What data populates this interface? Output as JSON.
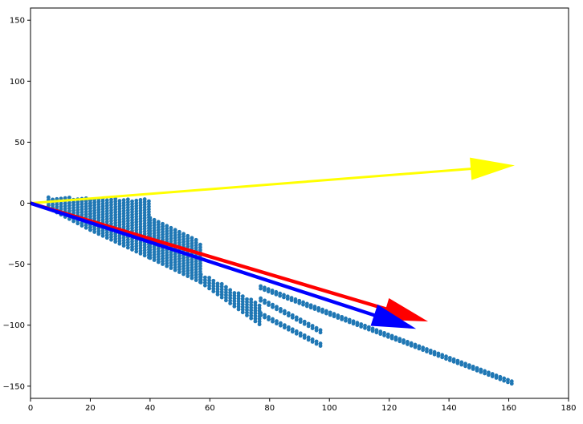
{
  "chart_data": {
    "type": "scatter",
    "title": "",
    "xlabel": "",
    "ylabel": "",
    "xlim": [
      0,
      180
    ],
    "ylim": [
      -160,
      160
    ],
    "grid": false,
    "x_ticks": [
      0,
      20,
      40,
      60,
      80,
      100,
      120,
      140,
      160,
      180
    ],
    "y_ticks": [
      -150,
      -100,
      -50,
      0,
      50,
      100,
      150
    ],
    "x_tick_labels": [
      "0",
      "20",
      "40",
      "60",
      "80",
      "100",
      "120",
      "140",
      "160",
      "180"
    ],
    "y_tick_labels": [
      "−150",
      "−100",
      "−50",
      "0",
      "50",
      "100",
      "150"
    ],
    "scatter": {
      "color": "#1f77b4",
      "description_cloud": [
        {
          "x_range": [
            6,
            20
          ],
          "y_top": 5,
          "y_bottom_start": -4,
          "y_bottom_end": -22
        },
        {
          "x_range": [
            20,
            40
          ],
          "y_top": 4,
          "y_bottom_start": -22,
          "y_bottom_end": -45
        },
        {
          "x_range": [
            40,
            57
          ],
          "y_top": -10,
          "y_bottom_start": -45,
          "y_bottom_end": -65
        },
        {
          "x_range": [
            57,
            77
          ],
          "y_top": -35,
          "y_bottom_start": -65,
          "y_bottom_end": -100
        }
      ],
      "tails": [
        {
          "x_start": 77,
          "y_start": -68,
          "x_end": 161,
          "y_end": -146
        },
        {
          "x_start": 77,
          "y_start": -78,
          "x_end": 97,
          "y_end": -104
        },
        {
          "x_start": 77,
          "y_start": -90,
          "x_end": 97,
          "y_end": -115
        }
      ]
    },
    "arrows": [
      {
        "color": "#ffff00",
        "from": [
          0,
          0
        ],
        "to": [
          162,
          31
        ]
      },
      {
        "color": "#ff0000",
        "from": [
          0,
          0
        ],
        "to": [
          133,
          -97
        ]
      },
      {
        "color": "#0000ff",
        "from": [
          0,
          0
        ],
        "to": [
          129,
          -103
        ]
      }
    ]
  }
}
